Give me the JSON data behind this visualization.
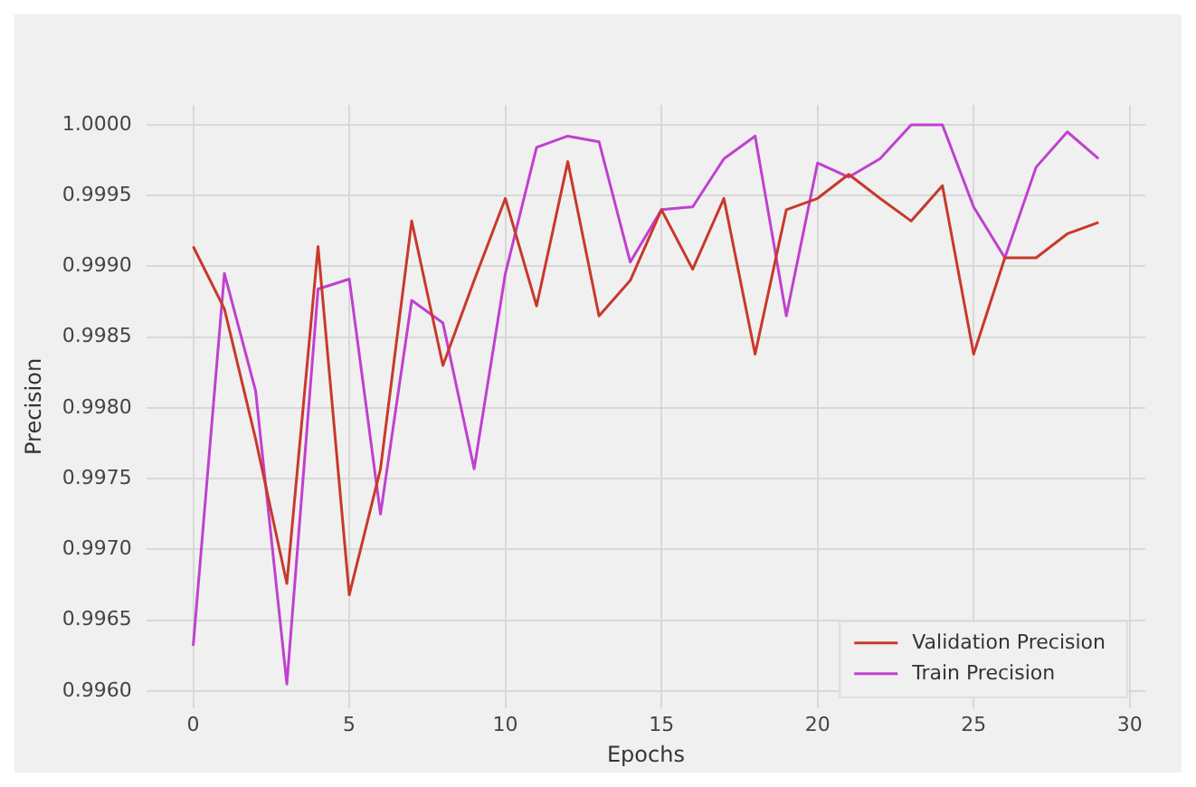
{
  "chart_data": {
    "type": "line",
    "xlabel": "Epochs",
    "ylabel": "Precision",
    "x": [
      0,
      1,
      2,
      3,
      4,
      5,
      6,
      7,
      8,
      9,
      10,
      11,
      12,
      13,
      14,
      15,
      16,
      17,
      18,
      19,
      20,
      21,
      22,
      23,
      24,
      25,
      26,
      27,
      28,
      29
    ],
    "series": [
      {
        "name": "Validation Precision",
        "color": "#c8392b",
        "values": [
          0.99914,
          0.9987,
          0.99778,
          0.99676,
          0.99914,
          0.99668,
          0.99757,
          0.99932,
          0.9983,
          0.9989,
          0.99948,
          0.99872,
          0.99974,
          0.99865,
          0.9989,
          0.9994,
          0.99898,
          0.99948,
          0.99838,
          0.9994,
          0.99948,
          0.99965,
          0.99948,
          0.99932,
          0.99957,
          0.99838,
          0.99906,
          0.99906,
          0.99923,
          0.99931
        ]
      },
      {
        "name": "Train Precision",
        "color": "#c040d0",
        "values": [
          0.99632,
          0.99895,
          0.99812,
          0.99605,
          0.99884,
          0.99891,
          0.99725,
          0.99876,
          0.9986,
          0.99757,
          0.99895,
          0.99984,
          0.99992,
          0.99988,
          0.99903,
          0.9994,
          0.99942,
          0.99976,
          0.99992,
          0.99865,
          0.99973,
          0.99963,
          0.99976,
          1.0,
          1.0,
          0.99942,
          0.99906,
          0.9997,
          0.99995,
          0.99976
        ]
      }
    ],
    "xlim": [
      -1.5,
      30.5
    ],
    "xticks": [
      0,
      5,
      10,
      15,
      20,
      25,
      30
    ],
    "ylim": [
      0.99588,
      1.00014
    ],
    "yticks": [
      {
        "value": 0.996,
        "label": "0.9960"
      },
      {
        "value": 0.9965,
        "label": "0.9965"
      },
      {
        "value": 0.997,
        "label": "0.9970"
      },
      {
        "value": 0.9975,
        "label": "0.9975"
      },
      {
        "value": 0.998,
        "label": "0.9980"
      },
      {
        "value": 0.9985,
        "label": "0.9985"
      },
      {
        "value": 0.999,
        "label": "0.9990"
      },
      {
        "value": 0.9995,
        "label": "0.9995"
      },
      {
        "value": 1.0,
        "label": "1.0000"
      }
    ],
    "grid": true,
    "legend": "bottom right",
    "marker": "none",
    "line_style": "solid"
  }
}
